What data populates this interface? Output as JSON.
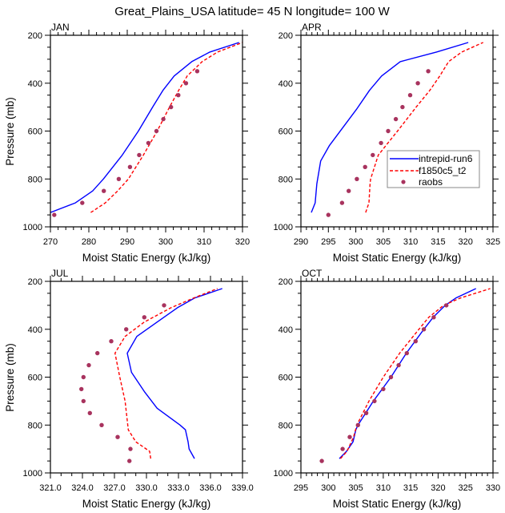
{
  "chart_data": {
    "title": "Great_Plains_USA  latitude= 45 N longitude= 100 W",
    "type": "line",
    "legend": {
      "placement": "inside-right of APR panel",
      "entries": [
        {
          "name": "intrepid-run6",
          "style": "solid",
          "color": "#0000ff"
        },
        {
          "name": "f1850c5_t2",
          "style": "dashed",
          "color": "#ff0000"
        },
        {
          "name": "raobs",
          "style": "marker",
          "color": "#a8335e"
        }
      ]
    },
    "panels": [
      {
        "title": "JAN",
        "type": "line",
        "xlabel": "Moist Static Energy (kJ/kg)",
        "ylabel": "Pressure (mb)",
        "xlim": [
          270,
          320
        ],
        "ylim": [
          1000,
          200
        ],
        "y_inverted": true,
        "xticks": [
          "270",
          "280",
          "290",
          "300",
          "310",
          "320"
        ],
        "xtick_values": [
          270,
          280,
          290,
          300,
          310,
          320
        ],
        "x_minor_step": 2,
        "yticks": [
          "200",
          "400",
          "600",
          "800",
          "1000"
        ],
        "ytick_values": [
          200,
          400,
          600,
          800,
          1000
        ],
        "y_minor_step": 50,
        "show_ylabel": true,
        "show_legend": false,
        "series": [
          {
            "name": "intrepid-run6",
            "p": [
              940,
              900,
              850,
              800,
              700,
              600,
              500,
              430,
              370,
              310,
              270,
              230
            ],
            "x": [
              270.0,
              276.5,
              281.0,
              283.8,
              288.7,
              292.9,
              296.6,
              299.3,
              302.2,
              306.8,
              311.5,
              319.1
            ]
          },
          {
            "name": "f1850c5_t2",
            "p": [
              940,
              900,
              850,
              800,
              700,
              600,
              500,
              430,
              370,
              310,
              270,
              230
            ],
            "x": [
              280.5,
              284.3,
              287.5,
              290.3,
              294.2,
              297.8,
              301.0,
              303.4,
              305.6,
              309.5,
              313.5,
              320.0
            ]
          },
          {
            "name": "raobs",
            "p": [
              950,
              900,
              850,
              800,
              750,
              700,
              650,
              600,
              550,
              500,
              450,
              400,
              350
            ],
            "x": [
              271.0,
              278.3,
              283.9,
              287.8,
              290.7,
              293.1,
              295.5,
              297.6,
              299.4,
              301.4,
              303.3,
              305.3,
              308.2
            ]
          }
        ]
      },
      {
        "title": "APR",
        "type": "line",
        "xlabel": "Moist Static Energy (kJ/kg)",
        "ylabel": "",
        "xlim": [
          290,
          325
        ],
        "ylim": [
          1000,
          200
        ],
        "y_inverted": true,
        "xticks": [
          "290",
          "295",
          "300",
          "305",
          "310",
          "315",
          "320",
          "325"
        ],
        "xtick_values": [
          290,
          295,
          300,
          305,
          310,
          315,
          320,
          325
        ],
        "x_minor_step": 1,
        "yticks": [
          "200",
          "400",
          "600",
          "800",
          "1000"
        ],
        "ytick_values": [
          200,
          400,
          600,
          800,
          1000
        ],
        "y_minor_step": 50,
        "show_ylabel": false,
        "show_legend": true,
        "series": [
          {
            "name": "intrepid-run6",
            "p": [
              940,
              900,
              820,
              725,
              660,
              510,
              430,
              370,
              310,
              270,
              230
            ],
            "x": [
              291.9,
              292.6,
              292.9,
              293.6,
              295.2,
              300.1,
              302.5,
              304.7,
              308.1,
              314.7,
              320.5
            ]
          },
          {
            "name": "f1850c5_t2",
            "p": [
              940,
              900,
              820,
              800,
              700,
              600,
              500,
              430,
              370,
              310,
              270,
              230
            ],
            "x": [
              301.8,
              302.4,
              302.6,
              302.7,
              304.1,
              307.6,
              311.0,
              313.5,
              315.3,
              316.9,
              319.3,
              323.2
            ]
          },
          {
            "name": "raobs",
            "p": [
              950,
              900,
              850,
              800,
              750,
              700,
              650,
              600,
              550,
              500,
              450,
              400,
              350
            ],
            "x": [
              295.0,
              297.5,
              298.7,
              300.2,
              301.7,
              303.1,
              304.6,
              305.9,
              307.3,
              308.5,
              309.9,
              311.3,
              313.2
            ]
          }
        ]
      },
      {
        "title": "JUL",
        "type": "line",
        "xlabel": "Moist Static Energy (kJ/kg)",
        "ylabel": "Pressure (mb)",
        "xlim": [
          321,
          339
        ],
        "ylim": [
          1000,
          200
        ],
        "y_inverted": true,
        "xticks": [
          "321.0",
          "324.0",
          "327.0",
          "330.0",
          "333.0",
          "336.0",
          "339.0"
        ],
        "xtick_values": [
          321,
          324,
          327,
          330,
          333,
          336,
          339
        ],
        "x_minor_step": 1,
        "yticks": [
          "200",
          "400",
          "600",
          "800",
          "1000"
        ],
        "ytick_values": [
          200,
          400,
          600,
          800,
          1000
        ],
        "y_minor_step": 50,
        "show_ylabel": true,
        "show_legend": false,
        "series": [
          {
            "name": "intrepid-run6",
            "p": [
              940,
              900,
              870,
              820,
              800,
              730,
              660,
              580,
              500,
              430,
              370,
              310,
              270,
              230
            ],
            "x": [
              334.5,
              334.0,
              333.9,
              333.65,
              333.15,
              331.0,
              329.8,
              328.6,
              328.2,
              329.1,
              331.0,
              332.9,
              334.5,
              337.1
            ]
          },
          {
            "name": "f1850c5_t2",
            "p": [
              940,
              910,
              870,
              820,
              700,
              600,
              500,
              430,
              370,
              310,
              270,
              230
            ],
            "x": [
              330.4,
              330.3,
              329.0,
              328.3,
              328.0,
              327.5,
              327.05,
              328.0,
              329.8,
              332.3,
              334.4,
              336.65
            ]
          },
          {
            "name": "raobs",
            "p": [
              950,
              900,
              850,
              800,
              750,
              700,
              650,
              600,
              550,
              500,
              450,
              400,
              350,
              300
            ],
            "x": [
              328.4,
              328.5,
              327.3,
              325.8,
              324.7,
              324.1,
              323.9,
              324.1,
              324.6,
              325.4,
              326.7,
              328.1,
              329.8,
              331.65
            ]
          }
        ]
      },
      {
        "title": "OCT",
        "type": "line",
        "xlabel": "Moist Static Energy (kJ/kg)",
        "ylabel": "",
        "xlim": [
          295,
          330
        ],
        "ylim": [
          1000,
          200
        ],
        "y_inverted": true,
        "xticks": [
          "295",
          "300",
          "305",
          "310",
          "315",
          "320",
          "325",
          "330"
        ],
        "xtick_values": [
          295,
          300,
          305,
          310,
          315,
          320,
          325,
          330
        ],
        "x_minor_step": 1,
        "yticks": [
          "200",
          "400",
          "600",
          "800",
          "1000"
        ],
        "ytick_values": [
          200,
          400,
          600,
          800,
          1000
        ],
        "y_minor_step": 50,
        "show_ylabel": false,
        "show_legend": false,
        "series": [
          {
            "name": "intrepid-run6",
            "p": [
              940,
              910,
              870,
              820,
              800,
              700,
              600,
              500,
              400,
              350,
              300,
              270,
              230
            ],
            "x": [
              302.0,
              303.3,
              304.5,
              305.0,
              305.4,
              308.2,
              311.4,
              314.2,
              317.4,
              319.1,
              321.3,
              323.2,
              326.9
            ]
          },
          {
            "name": "f1850c5_t2",
            "p": [
              940,
              910,
              850,
              800,
              700,
              600,
              500,
              400,
              350,
              300,
              270,
              230
            ],
            "x": [
              302.2,
              303.4,
              304.6,
              305.2,
              307.4,
              310.0,
              313.0,
              316.5,
              318.3,
              321.0,
              324.0,
              329.5
            ]
          },
          {
            "name": "raobs",
            "p": [
              950,
              900,
              850,
              800,
              750,
              700,
              650,
              600,
              550,
              500,
              450,
              400,
              350,
              300
            ],
            "x": [
              298.8,
              302.6,
              303.9,
              305.4,
              306.9,
              308.4,
              310.0,
              311.4,
              312.8,
              314.3,
              315.9,
              317.4,
              319.2,
              321.5
            ]
          }
        ]
      }
    ]
  }
}
